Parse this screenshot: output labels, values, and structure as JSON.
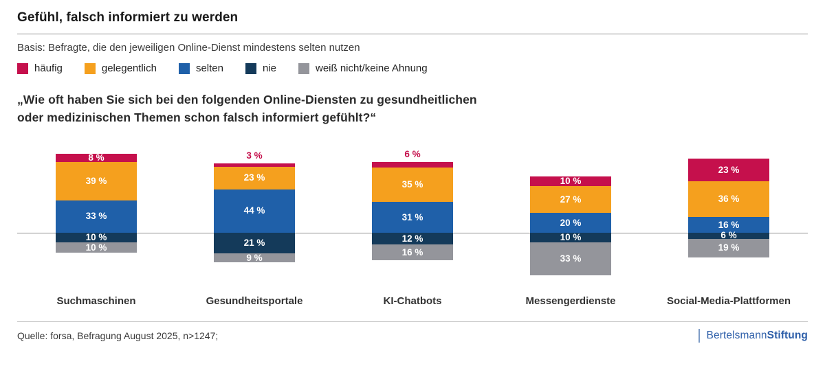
{
  "header": {
    "title": "Gefühl, falsch informiert zu werden"
  },
  "meta": {
    "basis": "Basis: Befragte, die den jeweiligen Online-Dienst mindestens selten nutzen"
  },
  "question": {
    "line1": "„Wie oft haben Sie sich bei den folgenden Online-Diensten zu gesundheitlichen",
    "line2": "oder medizinischen Themen schon falsch informiert gefühlt?“"
  },
  "chart_data": {
    "type": "bar",
    "subtype": "diverging-stacked-bar",
    "unit": "%",
    "categories": [
      "Suchmaschinen",
      "Gesundheitsportale",
      "KI-Chatbots",
      "Messengerdienste",
      "Social-Media-Plattformen"
    ],
    "series": [
      {
        "name": "häufig",
        "color": "#C5104C",
        "values": [
          8,
          3,
          6,
          10,
          23
        ]
      },
      {
        "name": "gelegentlich",
        "color": "#F5A01E",
        "values": [
          39,
          23,
          35,
          27,
          36
        ]
      },
      {
        "name": "selten",
        "color": "#1F60A9",
        "values": [
          33,
          44,
          31,
          20,
          16
        ]
      },
      {
        "name": "nie",
        "color": "#143A5A",
        "values": [
          10,
          21,
          12,
          10,
          6
        ]
      },
      {
        "name": "weiß nicht/keine Ahnung",
        "color": "#94959B",
        "values": [
          10,
          9,
          16,
          33,
          19
        ]
      }
    ],
    "above_baseline_series": [
      "häufig",
      "gelegentlich",
      "selten"
    ],
    "below_baseline_series": [
      "nie",
      "weiß nicht/keine Ahnung"
    ],
    "outside_value_labels": [
      {
        "category": "Gesundheitsportale",
        "series": "häufig"
      },
      {
        "category": "KI-Chatbots",
        "series": "häufig"
      }
    ],
    "value_label_format": "{v} %",
    "legend_position": "top",
    "grid": false
  },
  "footer": {
    "source": "Quelle: forsa, Befragung August 2025, n>1247;",
    "logo": {
      "text_regular": "Bertelsmann",
      "text_bold": "Stiftung",
      "color": "#2E5FA9"
    }
  }
}
